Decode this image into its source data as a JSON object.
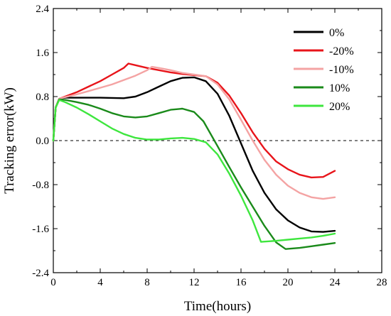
{
  "chart_data": {
    "type": "line",
    "xlabel": "Time(hours)",
    "ylabel": "Tracking error(kW)",
    "xlim": [
      0,
      28
    ],
    "ylim": [
      -2.4,
      2.4
    ],
    "xticks": [
      0,
      4,
      8,
      12,
      16,
      20,
      24,
      28
    ],
    "yticks": [
      -2.4,
      -1.6,
      -0.8,
      0.0,
      0.8,
      1.6,
      2.4
    ],
    "xtick_labels": [
      "0",
      "4",
      "8",
      "12",
      "16",
      "20",
      "24",
      "28"
    ],
    "ytick_labels": [
      "-2.4",
      "-1.6",
      "-0.8",
      "0.0",
      "0.8",
      "1.6",
      "2.4"
    ],
    "reference_line": {
      "y": 0,
      "style": "dashed"
    },
    "legend_position": "top-right",
    "grid": false,
    "series": [
      {
        "name": "0%",
        "color": "#000000",
        "x": [
          0,
          0.2,
          0.5,
          1,
          2,
          4,
          6,
          7,
          8,
          9,
          10,
          11,
          12,
          13,
          14,
          15,
          16,
          17,
          18,
          19,
          20,
          21,
          22,
          23,
          24
        ],
        "y": [
          0,
          0.6,
          0.76,
          0.78,
          0.78,
          0.78,
          0.77,
          0.8,
          0.88,
          0.98,
          1.08,
          1.14,
          1.15,
          1.08,
          0.85,
          0.45,
          -0.05,
          -0.55,
          -0.95,
          -1.25,
          -1.45,
          -1.58,
          -1.65,
          -1.66,
          -1.64
        ]
      },
      {
        "name": "-20%",
        "color": "#e8141a",
        "x": [
          0,
          0.2,
          0.5,
          1,
          2,
          3,
          4,
          5,
          6,
          6.4,
          7,
          8,
          9,
          10,
          11,
          12,
          13,
          14,
          15,
          16,
          17,
          18,
          19,
          20,
          21,
          22,
          23,
          24
        ],
        "y": [
          0,
          0.6,
          0.76,
          0.8,
          0.88,
          0.98,
          1.08,
          1.2,
          1.32,
          1.4,
          1.37,
          1.32,
          1.28,
          1.24,
          1.21,
          1.19,
          1.17,
          1.05,
          0.82,
          0.5,
          0.15,
          -0.15,
          -0.38,
          -0.52,
          -0.62,
          -0.67,
          -0.66,
          -0.55
        ]
      },
      {
        "name": "-10%",
        "color": "#f4a3a3",
        "x": [
          0,
          0.2,
          0.5,
          1,
          2,
          3,
          4,
          5,
          6,
          7,
          8,
          8.4,
          9,
          10,
          11,
          12,
          13,
          14,
          15,
          16,
          17,
          18,
          19,
          20,
          21,
          22,
          23,
          24
        ],
        "y": [
          0,
          0.6,
          0.76,
          0.79,
          0.84,
          0.9,
          0.96,
          1.02,
          1.1,
          1.18,
          1.28,
          1.34,
          1.32,
          1.28,
          1.23,
          1.2,
          1.17,
          1.02,
          0.75,
          0.38,
          0.0,
          -0.35,
          -0.62,
          -0.82,
          -0.95,
          -1.03,
          -1.06,
          -1.03
        ]
      },
      {
        "name": "10%",
        "color": "#1a8a1a",
        "x": [
          0,
          0.2,
          0.5,
          1,
          2,
          3,
          4,
          5,
          6,
          7,
          8,
          9,
          10,
          11,
          12,
          12.8,
          14,
          15,
          16,
          17,
          18,
          19,
          19.8,
          21,
          22,
          23,
          24
        ],
        "y": [
          0,
          0.6,
          0.75,
          0.74,
          0.7,
          0.65,
          0.58,
          0.5,
          0.44,
          0.42,
          0.44,
          0.5,
          0.56,
          0.58,
          0.52,
          0.35,
          -0.1,
          -0.48,
          -0.85,
          -1.2,
          -1.55,
          -1.85,
          -1.97,
          -1.95,
          -1.92,
          -1.89,
          -1.86
        ]
      },
      {
        "name": "20%",
        "color": "#3ee63e",
        "x": [
          0,
          0.2,
          0.5,
          1,
          2,
          3,
          4,
          5,
          6,
          7,
          8,
          9,
          10,
          11,
          12,
          13,
          14,
          15,
          16,
          17,
          17.7,
          19,
          20,
          21,
          22,
          23,
          24
        ],
        "y": [
          0,
          0.6,
          0.74,
          0.7,
          0.6,
          0.48,
          0.35,
          0.22,
          0.12,
          0.05,
          0.02,
          0.02,
          0.04,
          0.05,
          0.03,
          -0.03,
          -0.25,
          -0.6,
          -1.0,
          -1.45,
          -1.84,
          -1.82,
          -1.8,
          -1.78,
          -1.76,
          -1.73,
          -1.69
        ]
      }
    ]
  }
}
